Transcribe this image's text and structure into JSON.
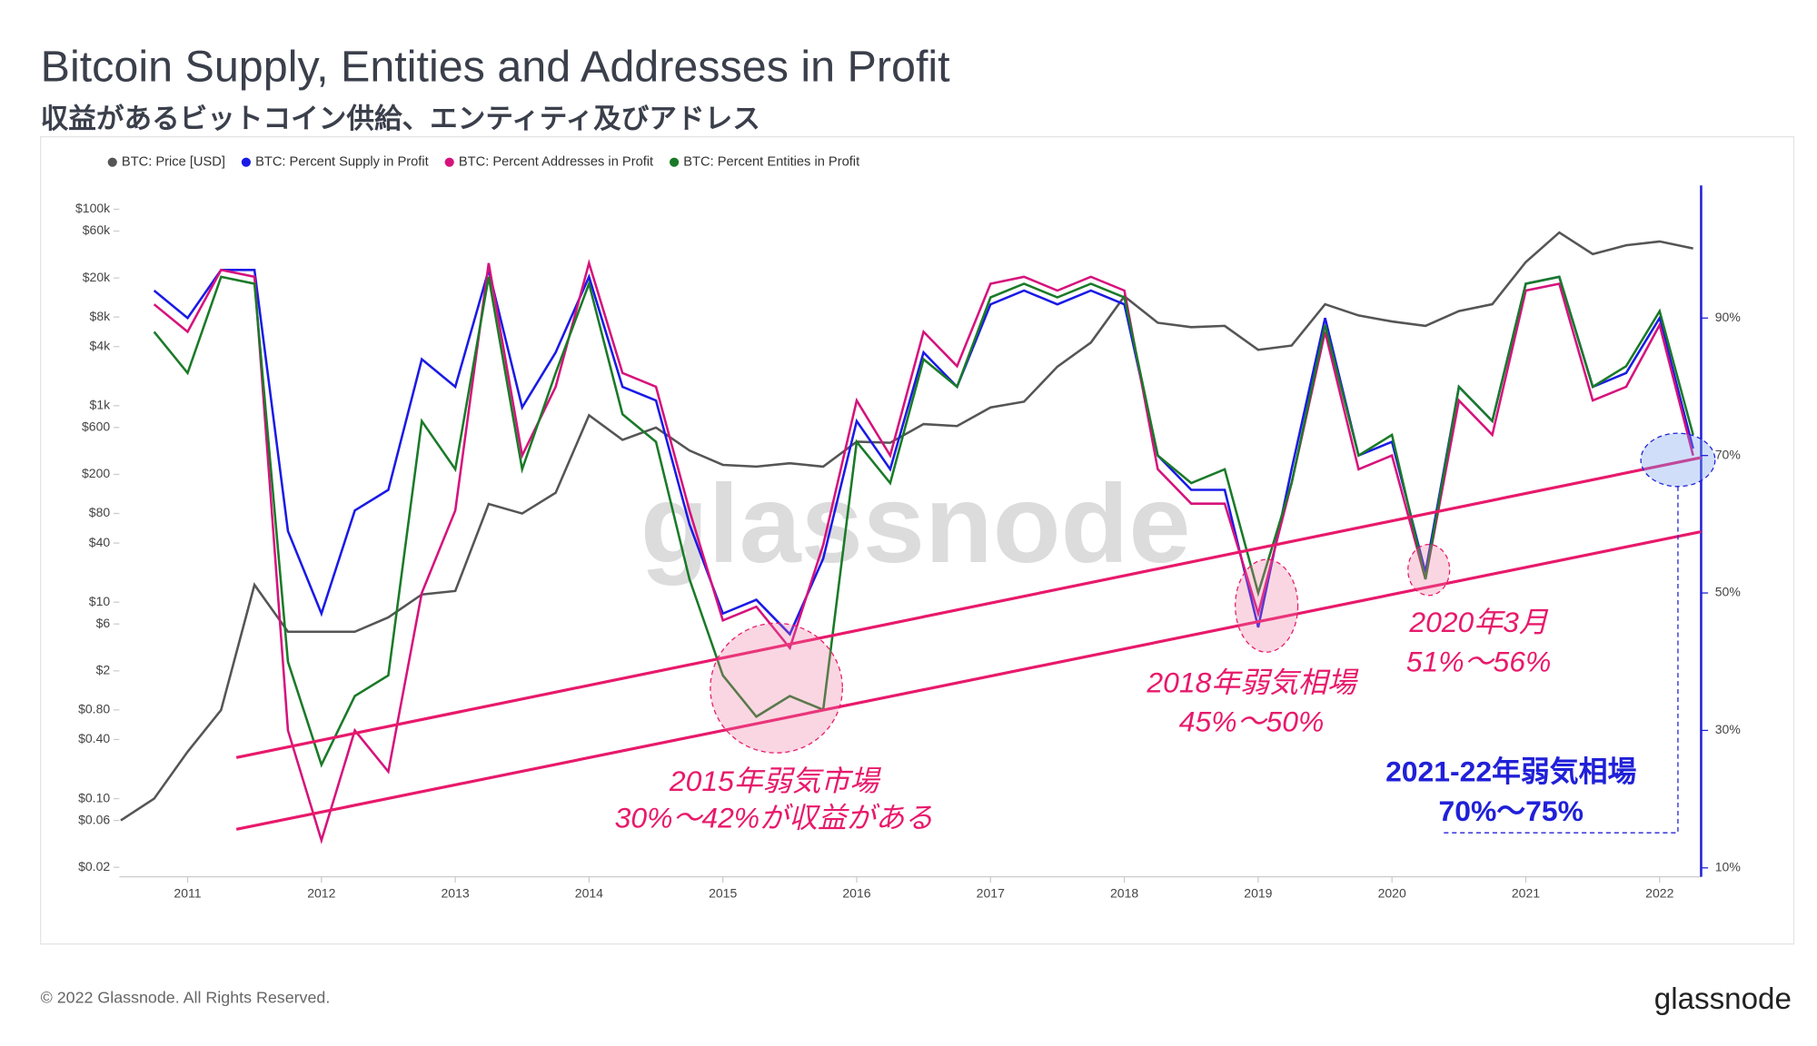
{
  "chart_data": {
    "type": "line",
    "title": "Bitcoin Supply, Entities and Addresses in Profit",
    "subtitle": "収益があるビットコイン供給、エンティティ及びアドレス",
    "footer": "© 2022 Glassnode. All Rights Reserved.",
    "logo": "glassnode",
    "watermark": "glassnode",
    "x": [
      2010.5,
      2010.75,
      2011,
      2011.25,
      2011.5,
      2011.75,
      2012,
      2012.25,
      2012.5,
      2012.75,
      2013,
      2013.25,
      2013.5,
      2013.75,
      2014,
      2014.25,
      2014.5,
      2014.75,
      2015,
      2015.25,
      2015.5,
      2015.75,
      2016,
      2016.25,
      2016.5,
      2016.75,
      2017,
      2017.25,
      2017.5,
      2017.75,
      2018,
      2018.25,
      2018.5,
      2018.75,
      2019,
      2019.25,
      2019.5,
      2019.75,
      2020,
      2020.25,
      2020.5,
      2020.75,
      2021,
      2021.25,
      2021.5,
      2021.75,
      2022,
      2022.25
    ],
    "xlim": [
      2010.49,
      2022.31
    ],
    "xticks": [
      2011,
      2012,
      2013,
      2014,
      2015,
      2016,
      2017,
      2018,
      2019,
      2020,
      2021,
      2022
    ],
    "ylim": [
      0.016,
      175000
    ],
    "log_scale": true,
    "yticks": [
      {
        "value": 0.02,
        "label": "$0.02"
      },
      {
        "value": 0.06,
        "label": "$0.06"
      },
      {
        "value": 0.1,
        "label": "$0.10"
      },
      {
        "value": 0.4,
        "label": "$0.40"
      },
      {
        "value": 0.8,
        "label": "$0.80"
      },
      {
        "value": 2,
        "label": "$2"
      },
      {
        "value": 6,
        "label": "$6"
      },
      {
        "value": 10,
        "label": "$10"
      },
      {
        "value": 40,
        "label": "$40"
      },
      {
        "value": 80,
        "label": "$80"
      },
      {
        "value": 200,
        "label": "$200"
      },
      {
        "value": 600,
        "label": "$600"
      },
      {
        "value": 1000,
        "label": "$1k"
      },
      {
        "value": 4000,
        "label": "$4k"
      },
      {
        "value": 8000,
        "label": "$8k"
      },
      {
        "value": 20000,
        "label": "$20k"
      },
      {
        "value": 60000,
        "label": "$60k"
      },
      {
        "value": 100000,
        "label": "$100k"
      }
    ],
    "y2lim": [
      8.7,
      109.3
    ],
    "y2ticks": [
      {
        "value": 10,
        "label": "10%"
      },
      {
        "value": 30,
        "label": "30%"
      },
      {
        "value": 50,
        "label": "50%"
      },
      {
        "value": 70,
        "label": "70%"
      },
      {
        "value": 90,
        "label": "90%"
      }
    ],
    "series": [
      {
        "name": "BTC: Price [USD]",
        "color": "#555555",
        "axis": "y",
        "values": [
          0.06,
          0.1,
          0.3,
          0.8,
          15,
          5,
          5,
          5,
          7,
          12,
          13,
          100,
          80,
          130,
          800,
          450,
          600,
          350,
          250,
          240,
          260,
          240,
          430,
          420,
          650,
          620,
          960,
          1100,
          2500,
          4400,
          13000,
          7000,
          6300,
          6500,
          3700,
          4100,
          10800,
          8300,
          7200,
          6500,
          9200,
          10800,
          29000,
          58000,
          35000,
          43000,
          47000,
          40000
        ]
      },
      {
        "name": "BTC: Percent Supply in Profit",
        "color": "#1a1ae6",
        "axis": "y2",
        "values": [
          null,
          94,
          90,
          97,
          97,
          59,
          47,
          62,
          65,
          84,
          80,
          97,
          77,
          85,
          96,
          80,
          78,
          60,
          47,
          49,
          44,
          55,
          75,
          68,
          85,
          80,
          92,
          94,
          92,
          94,
          92,
          70,
          65,
          65,
          45,
          68,
          90,
          70,
          72,
          53,
          80,
          75,
          95,
          96,
          80,
          82,
          90,
          71
        ]
      },
      {
        "name": "BTC: Percent Addresses in Profit",
        "color": "#d6127c",
        "axis": "y2",
        "values": [
          null,
          92,
          88,
          97,
          96,
          30,
          14,
          30,
          24,
          50,
          62,
          98,
          70,
          80,
          98,
          82,
          80,
          62,
          46,
          48,
          42,
          57,
          78,
          70,
          88,
          83,
          95,
          96,
          94,
          96,
          94,
          68,
          63,
          63,
          47,
          66,
          88,
          68,
          70,
          52,
          78,
          73,
          94,
          95,
          78,
          80,
          89,
          70
        ]
      },
      {
        "name": "BTC: Percent Entities in Profit",
        "color": "#1a7a28",
        "axis": "y2",
        "values": [
          null,
          88,
          82,
          96,
          95,
          40,
          25,
          35,
          38,
          75,
          68,
          96,
          68,
          82,
          95,
          76,
          72,
          52,
          38,
          32,
          35,
          33,
          72,
          66,
          84,
          80,
          93,
          95,
          93,
          95,
          93,
          70,
          66,
          68,
          50,
          66,
          89,
          70,
          73,
          52,
          80,
          75,
          95,
          96,
          80,
          83,
          91,
          73
        ]
      }
    ],
    "legend": "top-left",
    "annotations": [
      "2015年弱気市場",
      "30%～42%が収益がある",
      "2018年弱気相場",
      "45%～50%",
      "2020年3月",
      "51%～56%",
      "2021-22年弱気相場",
      "70%～75%"
    ]
  }
}
